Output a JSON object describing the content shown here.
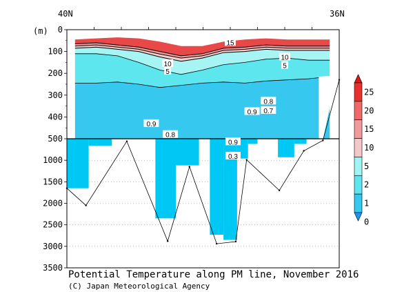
{
  "chart_data": {
    "type": "heatmap",
    "title": "Potential Temperature along PM line, November 2016",
    "credit": "(C) Japan Meteorological Agency",
    "x_labels": {
      "left": "40N",
      "right": "36N"
    },
    "y_unit": "(m)",
    "y_ticks_upper": [
      0,
      100,
      200,
      300,
      400,
      500
    ],
    "y_ticks_lower": [
      1000,
      1500,
      2000,
      2500,
      3000,
      3500
    ],
    "y_break_depth": 500,
    "ylim": [
      0,
      3500
    ],
    "colorbar": {
      "levels": [
        0,
        1,
        2,
        5,
        10,
        15,
        20,
        25
      ],
      "colors": [
        "#1e96f0",
        "#36c8ee",
        "#5ee6ee",
        "#a2f4f4",
        "#f5c8c8",
        "#f29a9a",
        "#ee6a6a",
        "#e8302e",
        "#d81a1a"
      ]
    },
    "bands_upper": [
      {
        "color": "#e94848",
        "top": [
          45,
          40,
          35,
          40,
          55,
          75,
          75,
          55,
          45,
          40,
          45,
          45,
          45
        ],
        "bottom": [
          65,
          60,
          70,
          80,
          100,
          120,
          110,
          85,
          80,
          70,
          75,
          75,
          75
        ]
      },
      {
        "color": "#f39999",
        "top": [
          65,
          60,
          70,
          80,
          100,
          120,
          110,
          85,
          80,
          70,
          75,
          75,
          75
        ],
        "bottom": [
          75,
          70,
          80,
          90,
          112,
          130,
          120,
          95,
          90,
          80,
          85,
          85,
          85
        ]
      },
      {
        "color": "#f6cccc",
        "top": [
          75,
          70,
          80,
          90,
          112,
          130,
          120,
          95,
          90,
          80,
          85,
          85,
          85
        ],
        "bottom": [
          85,
          80,
          90,
          100,
          125,
          145,
          130,
          105,
          100,
          90,
          95,
          95,
          95
        ]
      },
      {
        "color": "#a6f4f4",
        "top": [
          85,
          80,
          90,
          100,
          125,
          145,
          130,
          105,
          100,
          90,
          95,
          95,
          95
        ],
        "bottom": [
          110,
          110,
          120,
          150,
          185,
          205,
          185,
          160,
          150,
          135,
          130,
          140,
          140
        ]
      },
      {
        "color": "#5ee6ee",
        "top": [
          110,
          110,
          120,
          150,
          185,
          205,
          185,
          160,
          150,
          135,
          130,
          140,
          140
        ],
        "bottom": [
          245,
          245,
          240,
          250,
          265,
          255,
          245,
          240,
          245,
          235,
          230,
          225,
          215
        ]
      },
      {
        "color": "#36c8ee",
        "top": [
          245,
          245,
          240,
          250,
          265,
          255,
          245,
          240,
          245,
          235,
          230,
          225,
          215
        ],
        "bottom": [
          500,
          500,
          500,
          500,
          500,
          500,
          500,
          500,
          500,
          500,
          500,
          500,
          500
        ]
      }
    ],
    "lower_blocks": [
      {
        "from": 0.0,
        "to": 0.08,
        "depth": 1650
      },
      {
        "from": 0.08,
        "to": 0.165,
        "depth": 660
      },
      {
        "from": 0.325,
        "to": 0.4,
        "depth": 2350
      },
      {
        "from": 0.4,
        "to": 0.485,
        "depth": 1120
      },
      {
        "from": 0.525,
        "to": 0.575,
        "depth": 2730
      },
      {
        "from": 0.575,
        "to": 0.625,
        "depth": 2850
      },
      {
        "from": 0.625,
        "to": 0.665,
        "depth": 960
      },
      {
        "from": 0.665,
        "to": 0.7,
        "depth": 620
      },
      {
        "from": 0.775,
        "to": 0.835,
        "depth": 930
      },
      {
        "from": 0.835,
        "to": 0.88,
        "depth": 620
      }
    ],
    "bottom_profile": [
      [
        0.0,
        1650
      ],
      [
        0.07,
        2050
      ],
      [
        0.22,
        560
      ],
      [
        0.37,
        2880
      ],
      [
        0.45,
        1150
      ],
      [
        0.55,
        2940
      ],
      [
        0.62,
        2890
      ],
      [
        0.66,
        990
      ],
      [
        0.78,
        1700
      ],
      [
        0.87,
        780
      ],
      [
        0.94,
        540
      ],
      [
        1.0,
        230
      ]
    ],
    "contour_labels": [
      {
        "text": "15",
        "xf": 0.6,
        "depth": 58
      },
      {
        "text": "10",
        "xf": 0.37,
        "depth": 155
      },
      {
        "text": "5",
        "xf": 0.37,
        "depth": 190
      },
      {
        "text": "10",
        "xf": 0.8,
        "depth": 125
      },
      {
        "text": "5",
        "xf": 0.8,
        "depth": 163
      },
      {
        "text": "0.9",
        "xf": 0.31,
        "depth": 430
      },
      {
        "text": "0.8",
        "xf": 0.38,
        "depth": 480
      },
      {
        "text": "0.9",
        "xf": 0.68,
        "depth": 375
      },
      {
        "text": "0.8",
        "xf": 0.74,
        "depth": 327
      },
      {
        "text": "0.7",
        "xf": 0.74,
        "depth": 370
      },
      {
        "text": "0.9",
        "xf": 0.61,
        "depth": 570
      },
      {
        "text": "0.3",
        "xf": 0.61,
        "depth": 900
      }
    ]
  }
}
